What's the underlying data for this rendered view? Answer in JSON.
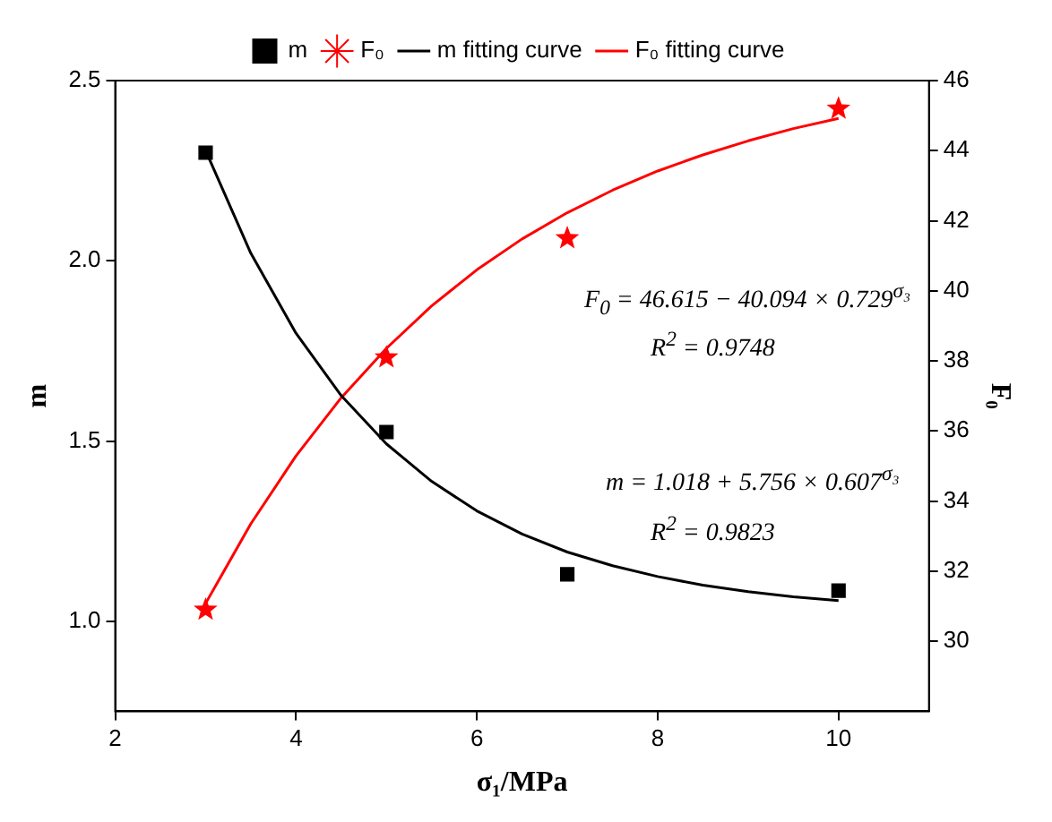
{
  "chart_data": {
    "type": "scatter",
    "xlabel": "σ₁/MPa",
    "ylabel": "m",
    "y2label": "F₀",
    "xlim": [
      2,
      11
    ],
    "xticks": [
      2,
      4,
      6,
      8,
      10
    ],
    "ylim": [
      0.75,
      2.5
    ],
    "yticks": [
      {
        "value": 1,
        "label": "1.0"
      },
      1.5,
      {
        "value": 2,
        "label": "2.0"
      },
      2.5
    ],
    "y2lim": [
      28,
      46
    ],
    "y2ticks": [
      30,
      32,
      34,
      36,
      38,
      40,
      42,
      44,
      46
    ],
    "grid": false,
    "legend": "top",
    "series": [
      {
        "name": "m",
        "type": "scatter",
        "marker": "square",
        "color": "#000000",
        "x": [
          3,
          5,
          7,
          10
        ],
        "values": [
          2.3,
          1.525,
          1.13,
          1.085
        ]
      },
      {
        "name": "F₀",
        "type": "scatter",
        "marker": "star",
        "axis": "y2",
        "color": "#ff0000",
        "x": [
          3,
          5,
          7,
          10
        ],
        "values": [
          30.9,
          38.1,
          41.5,
          45.2
        ]
      },
      {
        "name": "m fitting curve",
        "type": "line",
        "marker": "none",
        "color": "#000000",
        "x": [
          3,
          3.5,
          4,
          4.5,
          5,
          5.5,
          6,
          6.5,
          7,
          7.5,
          8,
          8.5,
          9,
          9.5,
          10
        ],
        "values": [
          2.306,
          2.021,
          1.799,
          1.626,
          1.492,
          1.388,
          1.306,
          1.242,
          1.192,
          1.154,
          1.124,
          1.1,
          1.082,
          1.068,
          1.057
        ]
      },
      {
        "name": "F₀ fitting curve",
        "type": "line",
        "marker": "none",
        "axis": "y2",
        "color": "#ff0000",
        "x": [
          3,
          3.5,
          4,
          4.5,
          5,
          5.5,
          6,
          6.5,
          7,
          7.5,
          8,
          8.5,
          9,
          9.5,
          10
        ],
        "values": [
          31.08,
          33.35,
          35.29,
          36.95,
          38.36,
          39.57,
          40.6,
          41.48,
          42.23,
          42.87,
          43.42,
          43.88,
          44.28,
          44.63,
          44.92
        ]
      }
    ],
    "annotations": [
      "F$_{0}$ = 46.615 − 40.094 × 0.729$^{σ₃}$",
      "R$^{2}$ = 0.9748",
      "m = 1.018 + 5.756 × 0.607$^{σ₃}$",
      "R$^{2}$ = 0.9823"
    ]
  }
}
